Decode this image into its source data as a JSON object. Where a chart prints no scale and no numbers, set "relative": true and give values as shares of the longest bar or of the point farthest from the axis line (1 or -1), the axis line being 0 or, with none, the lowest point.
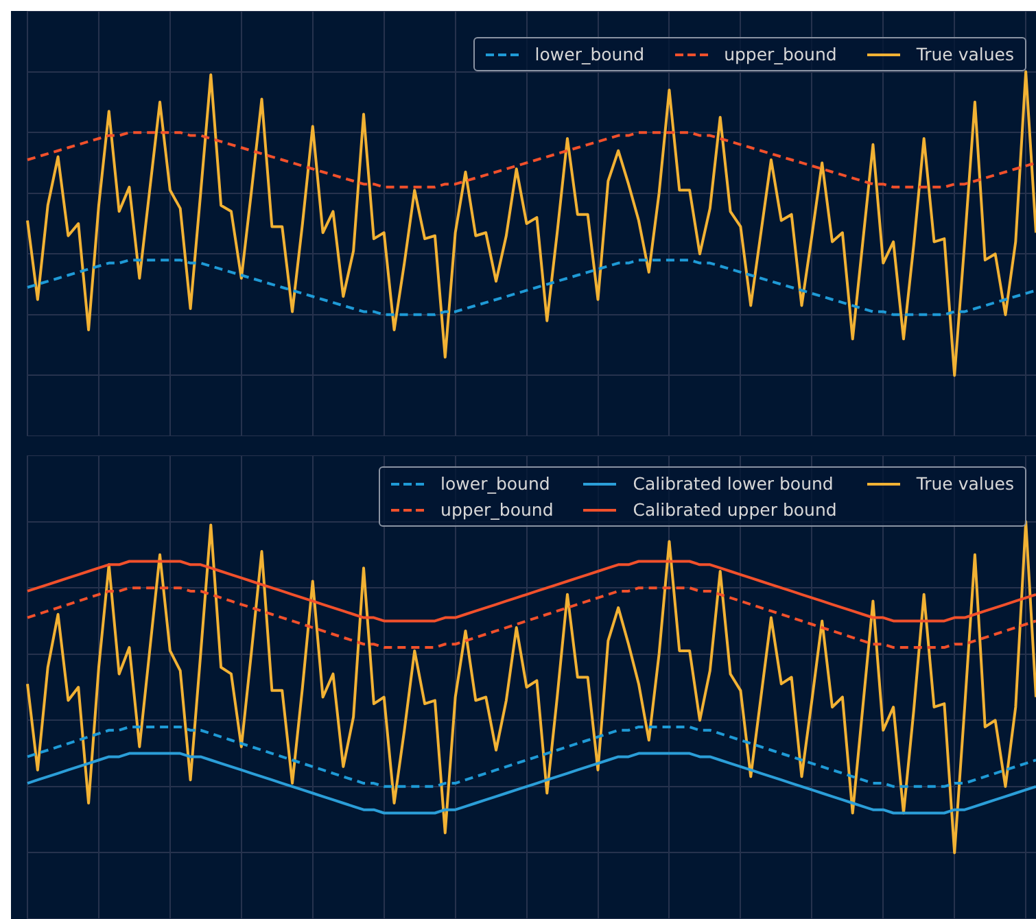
{
  "chart_data": [
    {
      "type": "line",
      "relative": true,
      "grid": true,
      "legend": "top right",
      "tick_labels": false,
      "categories": [
        null,
        null,
        null,
        null,
        null,
        null,
        null,
        null,
        null,
        null,
        null,
        null,
        null,
        null,
        null,
        null,
        null,
        null,
        null,
        null,
        null,
        null,
        null,
        null,
        null,
        null,
        null,
        null,
        null,
        null,
        null,
        null,
        null,
        null,
        null,
        null,
        null,
        null,
        null,
        null,
        null,
        null,
        null,
        null,
        null,
        null,
        null,
        null,
        null,
        null,
        null,
        null,
        null,
        null,
        null,
        null,
        null,
        null,
        null,
        null,
        null,
        null,
        null,
        null,
        null,
        null,
        null,
        null,
        null,
        null,
        null,
        null,
        null,
        null,
        null,
        null,
        null,
        null,
        null,
        null,
        null,
        null,
        null,
        null,
        null,
        null,
        null,
        null,
        null,
        null,
        null,
        null,
        null,
        null,
        null,
        null,
        null,
        null,
        null,
        null
      ],
      "series": [
        {
          "name": "lower_bound",
          "color": "#1f9ad6",
          "line_style": "dashed",
          "values": [
            0.29,
            0.3,
            0.31,
            0.32,
            0.33,
            0.34,
            0.35,
            0.36,
            0.37,
            0.37,
            0.38,
            0.38,
            0.38,
            0.38,
            0.38,
            0.38,
            0.37,
            0.37,
            0.36,
            0.35,
            0.34,
            0.33,
            0.32,
            0.31,
            0.3,
            0.29,
            0.28,
            0.27,
            0.26,
            0.25,
            0.24,
            0.23,
            0.22,
            0.21,
            0.21,
            0.2,
            0.2,
            0.2,
            0.2,
            0.2,
            0.2,
            0.21,
            0.21,
            0.22,
            0.23,
            0.24,
            0.25,
            0.26,
            0.27,
            0.28,
            0.29,
            0.3,
            0.31,
            0.32,
            0.33,
            0.34,
            0.35,
            0.36,
            0.37,
            0.37,
            0.38,
            0.38,
            0.38,
            0.38,
            0.38,
            0.38,
            0.37,
            0.37,
            0.36,
            0.35,
            0.34,
            0.33,
            0.32,
            0.31,
            0.3,
            0.29,
            0.28,
            0.27,
            0.26,
            0.25,
            0.24,
            0.23,
            0.22,
            0.21,
            0.21,
            0.2,
            0.2,
            0.2,
            0.2,
            0.2,
            0.2,
            0.21,
            0.21,
            0.22,
            0.23,
            0.24,
            0.25,
            0.26,
            0.27,
            0.28
          ]
        },
        {
          "name": "upper_bound",
          "color": "#f1502b",
          "line_style": "dashed",
          "values": [
            0.71,
            0.72,
            0.73,
            0.74,
            0.75,
            0.76,
            0.77,
            0.78,
            0.79,
            0.79,
            0.8,
            0.8,
            0.8,
            0.8,
            0.8,
            0.8,
            0.79,
            0.79,
            0.78,
            0.77,
            0.76,
            0.75,
            0.74,
            0.73,
            0.72,
            0.71,
            0.7,
            0.69,
            0.68,
            0.67,
            0.66,
            0.65,
            0.64,
            0.63,
            0.63,
            0.62,
            0.62,
            0.62,
            0.62,
            0.62,
            0.62,
            0.63,
            0.63,
            0.64,
            0.65,
            0.66,
            0.67,
            0.68,
            0.69,
            0.7,
            0.71,
            0.72,
            0.73,
            0.74,
            0.75,
            0.76,
            0.77,
            0.78,
            0.79,
            0.79,
            0.8,
            0.8,
            0.8,
            0.8,
            0.8,
            0.8,
            0.79,
            0.79,
            0.78,
            0.77,
            0.76,
            0.75,
            0.74,
            0.73,
            0.72,
            0.71,
            0.7,
            0.69,
            0.68,
            0.67,
            0.66,
            0.65,
            0.64,
            0.63,
            0.63,
            0.62,
            0.62,
            0.62,
            0.62,
            0.62,
            0.62,
            0.63,
            0.63,
            0.64,
            0.65,
            0.66,
            0.67,
            0.68,
            0.69,
            0.7
          ]
        },
        {
          "name": "True values",
          "color": "#f2b234",
          "line_style": "solid",
          "values": [
            0.51,
            0.25,
            0.56,
            0.72,
            0.46,
            0.5,
            0.15,
            0.56,
            0.87,
            0.54,
            0.62,
            0.32,
            0.61,
            0.9,
            0.61,
            0.55,
            0.22,
            0.6,
            0.99,
            0.56,
            0.54,
            0.32,
            0.61,
            0.91,
            0.49,
            0.49,
            0.21,
            0.5,
            0.82,
            0.47,
            0.54,
            0.26,
            0.41,
            0.86,
            0.45,
            0.47,
            0.15,
            0.37,
            0.61,
            0.45,
            0.46,
            0.06,
            0.47,
            0.67,
            0.46,
            0.47,
            0.31,
            0.46,
            0.68,
            0.5,
            0.52,
            0.18,
            0.47,
            0.78,
            0.53,
            0.53,
            0.25,
            0.64,
            0.74,
            0.63,
            0.51,
            0.34,
            0.6,
            0.94,
            0.61,
            0.61,
            0.4,
            0.55,
            0.85,
            0.54,
            0.49,
            0.23,
            0.47,
            0.71,
            0.51,
            0.53,
            0.23,
            0.46,
            0.7,
            0.44,
            0.47,
            0.12,
            0.44,
            0.76,
            0.37,
            0.44,
            0.12,
            0.43,
            0.78,
            0.44,
            0.45,
            0,
            0.44,
            0.9,
            0.38,
            0.4,
            0.2,
            0.44,
            1,
            0.47
          ]
        }
      ]
    },
    {
      "type": "line",
      "relative": true,
      "grid": true,
      "legend": "top right",
      "tick_labels": false,
      "categories": [
        null,
        null,
        null,
        null,
        null,
        null,
        null,
        null,
        null,
        null,
        null,
        null,
        null,
        null,
        null,
        null,
        null,
        null,
        null,
        null,
        null,
        null,
        null,
        null,
        null,
        null,
        null,
        null,
        null,
        null,
        null,
        null,
        null,
        null,
        null,
        null,
        null,
        null,
        null,
        null,
        null,
        null,
        null,
        null,
        null,
        null,
        null,
        null,
        null,
        null,
        null,
        null,
        null,
        null,
        null,
        null,
        null,
        null,
        null,
        null,
        null,
        null,
        null,
        null,
        null,
        null,
        null,
        null,
        null,
        null,
        null,
        null,
        null,
        null,
        null,
        null,
        null,
        null,
        null,
        null,
        null,
        null,
        null,
        null,
        null,
        null,
        null,
        null,
        null,
        null,
        null,
        null,
        null,
        null,
        null,
        null,
        null,
        null,
        null,
        null
      ],
      "series": [
        {
          "name": "lower_bound",
          "color": "#1f9ad6",
          "line_style": "dashed",
          "values": [
            0.29,
            0.3,
            0.31,
            0.32,
            0.33,
            0.34,
            0.35,
            0.36,
            0.37,
            0.37,
            0.38,
            0.38,
            0.38,
            0.38,
            0.38,
            0.38,
            0.37,
            0.37,
            0.36,
            0.35,
            0.34,
            0.33,
            0.32,
            0.31,
            0.3,
            0.29,
            0.28,
            0.27,
            0.26,
            0.25,
            0.24,
            0.23,
            0.22,
            0.21,
            0.21,
            0.2,
            0.2,
            0.2,
            0.2,
            0.2,
            0.2,
            0.21,
            0.21,
            0.22,
            0.23,
            0.24,
            0.25,
            0.26,
            0.27,
            0.28,
            0.29,
            0.3,
            0.31,
            0.32,
            0.33,
            0.34,
            0.35,
            0.36,
            0.37,
            0.37,
            0.38,
            0.38,
            0.38,
            0.38,
            0.38,
            0.38,
            0.37,
            0.37,
            0.36,
            0.35,
            0.34,
            0.33,
            0.32,
            0.31,
            0.3,
            0.29,
            0.28,
            0.27,
            0.26,
            0.25,
            0.24,
            0.23,
            0.22,
            0.21,
            0.21,
            0.2,
            0.2,
            0.2,
            0.2,
            0.2,
            0.2,
            0.21,
            0.21,
            0.22,
            0.23,
            0.24,
            0.25,
            0.26,
            0.27,
            0.28
          ]
        },
        {
          "name": "upper_bound",
          "color": "#f1502b",
          "line_style": "dashed",
          "values": [
            0.71,
            0.72,
            0.73,
            0.74,
            0.75,
            0.76,
            0.77,
            0.78,
            0.79,
            0.79,
            0.8,
            0.8,
            0.8,
            0.8,
            0.8,
            0.8,
            0.79,
            0.79,
            0.78,
            0.77,
            0.76,
            0.75,
            0.74,
            0.73,
            0.72,
            0.71,
            0.7,
            0.69,
            0.68,
            0.67,
            0.66,
            0.65,
            0.64,
            0.63,
            0.63,
            0.62,
            0.62,
            0.62,
            0.62,
            0.62,
            0.62,
            0.63,
            0.63,
            0.64,
            0.65,
            0.66,
            0.67,
            0.68,
            0.69,
            0.7,
            0.71,
            0.72,
            0.73,
            0.74,
            0.75,
            0.76,
            0.77,
            0.78,
            0.79,
            0.79,
            0.8,
            0.8,
            0.8,
            0.8,
            0.8,
            0.8,
            0.79,
            0.79,
            0.78,
            0.77,
            0.76,
            0.75,
            0.74,
            0.73,
            0.72,
            0.71,
            0.7,
            0.69,
            0.68,
            0.67,
            0.66,
            0.65,
            0.64,
            0.63,
            0.63,
            0.62,
            0.62,
            0.62,
            0.62,
            0.62,
            0.62,
            0.63,
            0.63,
            0.64,
            0.65,
            0.66,
            0.67,
            0.68,
            0.69,
            0.7
          ]
        },
        {
          "name": "Calibrated lower bound",
          "color": "#2b9ed8",
          "line_style": "solid",
          "values": [
            0.21,
            0.22,
            0.23,
            0.24,
            0.25,
            0.26,
            0.27,
            0.28,
            0.29,
            0.29,
            0.3,
            0.3,
            0.3,
            0.3,
            0.3,
            0.3,
            0.29,
            0.29,
            0.28,
            0.27,
            0.26,
            0.25,
            0.24,
            0.23,
            0.22,
            0.21,
            0.2,
            0.19,
            0.18,
            0.17,
            0.16,
            0.15,
            0.14,
            0.13,
            0.13,
            0.12,
            0.12,
            0.12,
            0.12,
            0.12,
            0.12,
            0.13,
            0.13,
            0.14,
            0.15,
            0.16,
            0.17,
            0.18,
            0.19,
            0.2,
            0.21,
            0.22,
            0.23,
            0.24,
            0.25,
            0.26,
            0.27,
            0.28,
            0.29,
            0.29,
            0.3,
            0.3,
            0.3,
            0.3,
            0.3,
            0.3,
            0.29,
            0.29,
            0.28,
            0.27,
            0.26,
            0.25,
            0.24,
            0.23,
            0.22,
            0.21,
            0.2,
            0.19,
            0.18,
            0.17,
            0.16,
            0.15,
            0.14,
            0.13,
            0.13,
            0.12,
            0.12,
            0.12,
            0.12,
            0.12,
            0.12,
            0.13,
            0.13,
            0.14,
            0.15,
            0.16,
            0.17,
            0.18,
            0.19,
            0.2
          ]
        },
        {
          "name": "Calibrated upper bound",
          "color": "#f1502b",
          "line_style": "solid",
          "values": [
            0.79,
            0.8,
            0.81,
            0.82,
            0.83,
            0.84,
            0.85,
            0.86,
            0.87,
            0.87,
            0.88,
            0.88,
            0.88,
            0.88,
            0.88,
            0.88,
            0.87,
            0.87,
            0.86,
            0.85,
            0.84,
            0.83,
            0.82,
            0.81,
            0.8,
            0.79,
            0.78,
            0.77,
            0.76,
            0.75,
            0.74,
            0.73,
            0.72,
            0.71,
            0.71,
            0.7,
            0.7,
            0.7,
            0.7,
            0.7,
            0.7,
            0.71,
            0.71,
            0.72,
            0.73,
            0.74,
            0.75,
            0.76,
            0.77,
            0.78,
            0.79,
            0.8,
            0.81,
            0.82,
            0.83,
            0.84,
            0.85,
            0.86,
            0.87,
            0.87,
            0.88,
            0.88,
            0.88,
            0.88,
            0.88,
            0.88,
            0.87,
            0.87,
            0.86,
            0.85,
            0.84,
            0.83,
            0.82,
            0.81,
            0.8,
            0.79,
            0.78,
            0.77,
            0.76,
            0.75,
            0.74,
            0.73,
            0.72,
            0.71,
            0.71,
            0.7,
            0.7,
            0.7,
            0.7,
            0.7,
            0.7,
            0.71,
            0.71,
            0.72,
            0.73,
            0.74,
            0.75,
            0.76,
            0.77,
            0.78
          ]
        },
        {
          "name": "True values",
          "color": "#f2b234",
          "line_style": "solid",
          "values": [
            0.51,
            0.25,
            0.56,
            0.72,
            0.46,
            0.5,
            0.15,
            0.56,
            0.87,
            0.54,
            0.62,
            0.32,
            0.61,
            0.9,
            0.61,
            0.55,
            0.22,
            0.6,
            0.99,
            0.56,
            0.54,
            0.32,
            0.61,
            0.91,
            0.49,
            0.49,
            0.21,
            0.5,
            0.82,
            0.47,
            0.54,
            0.26,
            0.41,
            0.86,
            0.45,
            0.47,
            0.15,
            0.37,
            0.61,
            0.45,
            0.46,
            0.06,
            0.47,
            0.67,
            0.46,
            0.47,
            0.31,
            0.46,
            0.68,
            0.5,
            0.52,
            0.18,
            0.47,
            0.78,
            0.53,
            0.53,
            0.25,
            0.64,
            0.74,
            0.63,
            0.51,
            0.34,
            0.6,
            0.94,
            0.61,
            0.61,
            0.4,
            0.55,
            0.85,
            0.54,
            0.49,
            0.23,
            0.47,
            0.71,
            0.51,
            0.53,
            0.23,
            0.46,
            0.7,
            0.44,
            0.47,
            0.12,
            0.44,
            0.76,
            0.37,
            0.44,
            0.12,
            0.43,
            0.78,
            0.44,
            0.45,
            0,
            0.44,
            0.9,
            0.38,
            0.4,
            0.2,
            0.44,
            1,
            0.47
          ]
        }
      ]
    }
  ]
}
